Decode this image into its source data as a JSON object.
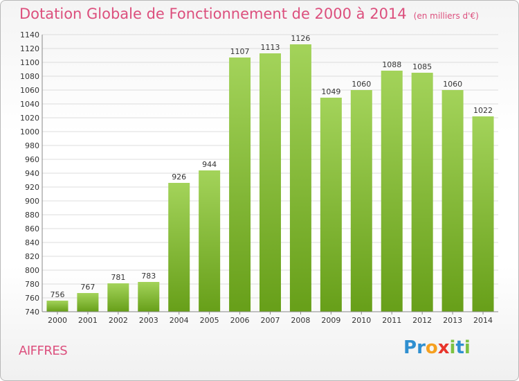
{
  "chart_data": {
    "type": "bar",
    "title": "Dotation Globale de Fonctionnement de 2000 à 2014",
    "subtitle": "(en milliers d'€)",
    "categories": [
      "2000",
      "2001",
      "2002",
      "2003",
      "2004",
      "2005",
      "2006",
      "2007",
      "2008",
      "2009",
      "2010",
      "2011",
      "2012",
      "2013",
      "2014"
    ],
    "values": [
      756,
      767,
      781,
      783,
      926,
      944,
      1107,
      1113,
      1126,
      1049,
      1060,
      1088,
      1085,
      1060,
      1022
    ],
    "ylim": [
      740,
      1140
    ],
    "yticks": [
      740,
      760,
      780,
      800,
      820,
      840,
      860,
      880,
      900,
      920,
      940,
      960,
      980,
      1000,
      1020,
      1040,
      1060,
      1080,
      1100,
      1120,
      1140
    ],
    "grid": true,
    "bar_color_top": "#a3d35a",
    "bar_color_bottom": "#679f19"
  },
  "commune": "AIFFRES",
  "logo": {
    "letters": [
      "P",
      "r",
      "o",
      "x",
      "i",
      "t",
      "i"
    ],
    "colors": [
      "#2f8fd0",
      "#2f8fd0",
      "#f5a020",
      "#e8352c",
      "#7cc242",
      "#2f8fd0",
      "#7cc242"
    ]
  }
}
